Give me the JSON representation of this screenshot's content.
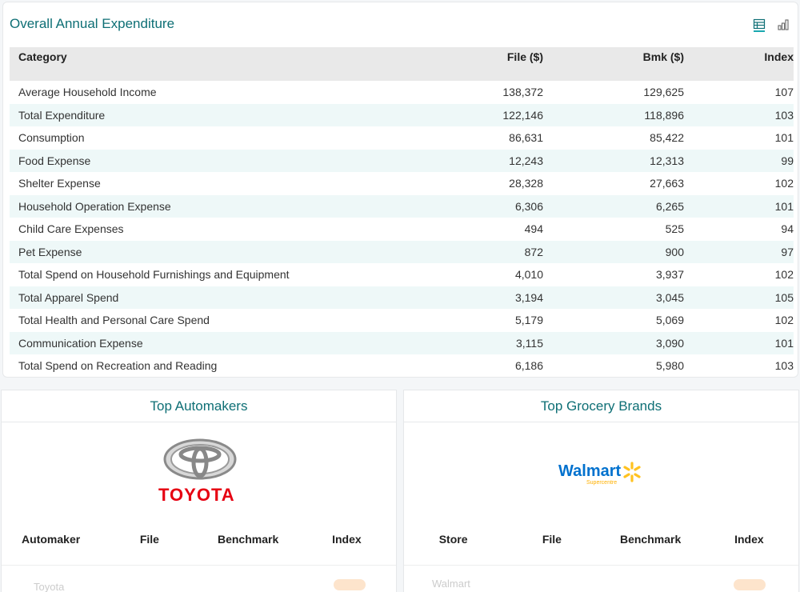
{
  "expenditure": {
    "title": "Overall Annual Expenditure",
    "headers": {
      "category": "Category",
      "file": "File ($)",
      "bmk": "Bmk ($)",
      "index": "Index"
    },
    "rows": [
      {
        "category": "Average Household Income",
        "file": "138,372",
        "bmk": "129,625",
        "index": "107"
      },
      {
        "category": "Total Expenditure",
        "file": "122,146",
        "bmk": "118,896",
        "index": "103"
      },
      {
        "category": "Consumption",
        "file": "86,631",
        "bmk": "85,422",
        "index": "101"
      },
      {
        "category": "Food Expense",
        "file": "12,243",
        "bmk": "12,313",
        "index": "99"
      },
      {
        "category": "Shelter Expense",
        "file": "28,328",
        "bmk": "27,663",
        "index": "102"
      },
      {
        "category": "Household Operation Expense",
        "file": "6,306",
        "bmk": "6,265",
        "index": "101"
      },
      {
        "category": "Child Care Expenses",
        "file": "494",
        "bmk": "525",
        "index": "94"
      },
      {
        "category": "Pet Expense",
        "file": "872",
        "bmk": "900",
        "index": "97"
      },
      {
        "category": "Total Spend on Household Furnishings and Equipment",
        "file": "4,010",
        "bmk": "3,937",
        "index": "102"
      },
      {
        "category": "Total Apparel Spend",
        "file": "3,194",
        "bmk": "3,045",
        "index": "105"
      },
      {
        "category": "Total Health and Personal Care Spend",
        "file": "5,179",
        "bmk": "5,069",
        "index": "102"
      },
      {
        "category": "Communication Expense",
        "file": "3,115",
        "bmk": "3,090",
        "index": "101"
      },
      {
        "category": "Total Spend on Recreation and Reading",
        "file": "6,186",
        "bmk": "5,980",
        "index": "103"
      }
    ]
  },
  "automakers": {
    "title": "Top Automakers",
    "logo_text": "TOYOTA",
    "headers": [
      "Automaker",
      "File",
      "Benchmark",
      "Index"
    ],
    "first_row_partial": "Toyota"
  },
  "grocery": {
    "title": "Top Grocery Brands",
    "logo_text": "Walmart",
    "logo_subtext": "Supercentre",
    "headers": [
      "Store",
      "File",
      "Benchmark",
      "Index"
    ],
    "first_row_partial": "Walmart"
  },
  "colors": {
    "accent": "#0e6f75",
    "stripe": "#eef8f8",
    "header_bg": "#e9e9e9",
    "toyota_red": "#e60012",
    "walmart_blue": "#0071ce",
    "walmart_yellow": "#ffc220"
  }
}
